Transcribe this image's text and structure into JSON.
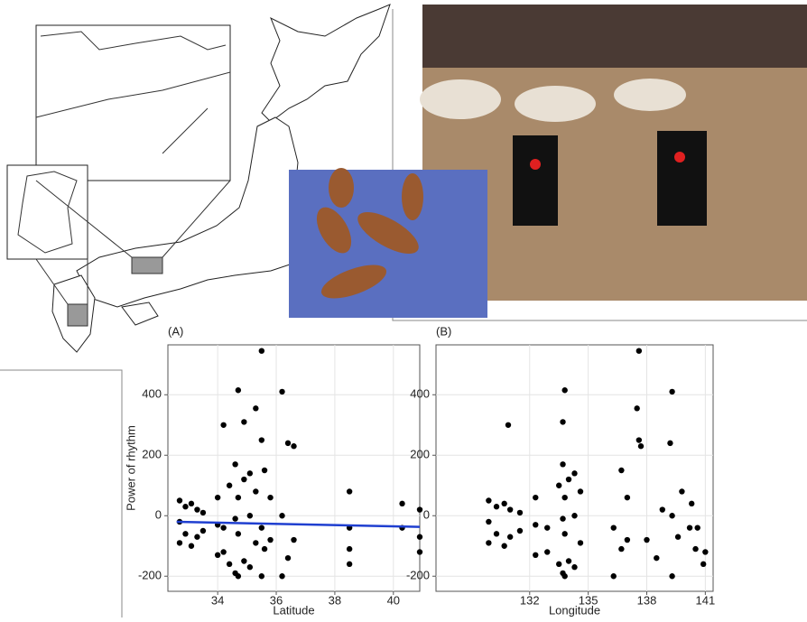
{
  "chart_data": [
    {
      "type": "scatter",
      "panel_label": "(A)",
      "xlabel": "Latitude",
      "ylabel": "Power of rhythm",
      "xlim": [
        32.3,
        40.9
      ],
      "xticks": [
        34,
        36,
        38,
        40
      ],
      "ylim": [
        -250,
        565
      ],
      "yticks": [
        -200,
        0,
        200,
        400
      ],
      "grid": true,
      "color": "#000000",
      "x": [
        32.7,
        32.7,
        32.7,
        32.9,
        32.9,
        33.1,
        33.1,
        33.3,
        33.3,
        33.5,
        33.5,
        34.0,
        34.0,
        34.0,
        34.2,
        34.2,
        34.2,
        34.4,
        34.4,
        34.6,
        34.6,
        34.6,
        34.7,
        34.7,
        34.7,
        34.7,
        34.9,
        34.9,
        34.9,
        35.1,
        35.1,
        35.1,
        35.3,
        35.3,
        35.3,
        35.5,
        35.5,
        35.5,
        35.5,
        35.6,
        35.6,
        35.8,
        35.8,
        36.2,
        36.2,
        36.2,
        36.4,
        36.4,
        36.6,
        36.6,
        38.5,
        38.5,
        38.5,
        38.5,
        40.3,
        40.3,
        40.9,
        40.9,
        40.9
      ],
      "values": [
        50,
        -20,
        -90,
        30,
        -60,
        40,
        -100,
        20,
        -70,
        10,
        -50,
        60,
        -30,
        -130,
        300,
        -40,
        -120,
        100,
        -160,
        170,
        -10,
        -190,
        415,
        60,
        -60,
        -200,
        310,
        120,
        -150,
        140,
        0,
        -170,
        355,
        80,
        -90,
        545,
        250,
        -40,
        -200,
        150,
        -110,
        60,
        -80,
        410,
        0,
        -200,
        240,
        -140,
        230,
        -80,
        80,
        -40,
        -110,
        -160,
        40,
        -40,
        20,
        -70,
        -120
      ],
      "trend": {
        "x": [
          32.6,
          40.9
        ],
        "values": [
          -20,
          -37
        ],
        "color": "#1f3fd0"
      }
    },
    {
      "type": "scatter",
      "panel_label": "(B)",
      "xlabel": "Longitude",
      "xlim": [
        127.2,
        141.4
      ],
      "xticks": [
        132,
        135,
        138,
        141
      ],
      "ylim": [
        -250,
        565
      ],
      "yticks": [
        -200,
        0,
        200,
        400
      ],
      "grid": true,
      "color": "#000000",
      "x": [
        129.9,
        129.9,
        129.9,
        130.3,
        130.3,
        130.7,
        130.7,
        131.0,
        131.0,
        131.5,
        131.5,
        132.3,
        132.3,
        132.3,
        130.9,
        132.9,
        132.9,
        133.5,
        133.5,
        133.7,
        133.7,
        133.7,
        133.8,
        133.8,
        133.8,
        133.8,
        133.7,
        134.0,
        134.0,
        134.3,
        134.3,
        134.3,
        137.5,
        134.6,
        134.6,
        137.6,
        137.6,
        136.3,
        136.3,
        136.7,
        136.7,
        137.0,
        137.0,
        139.3,
        139.3,
        139.3,
        139.2,
        138.5,
        137.7,
        138.0,
        139.8,
        140.2,
        140.5,
        140.9,
        140.3,
        140.6,
        138.8,
        139.6,
        141.0
      ],
      "values": [
        50,
        -20,
        -90,
        30,
        -60,
        40,
        -100,
        20,
        -70,
        10,
        -50,
        60,
        -30,
        -130,
        300,
        -40,
        -120,
        100,
        -160,
        170,
        -10,
        -190,
        415,
        60,
        -60,
        -200,
        310,
        120,
        -150,
        140,
        0,
        -170,
        355,
        80,
        -90,
        545,
        250,
        -40,
        -200,
        150,
        -110,
        60,
        -80,
        410,
        0,
        -200,
        240,
        -140,
        230,
        -80,
        80,
        -40,
        -110,
        -160,
        40,
        -40,
        20,
        -70,
        -120
      ]
    }
  ]
}
